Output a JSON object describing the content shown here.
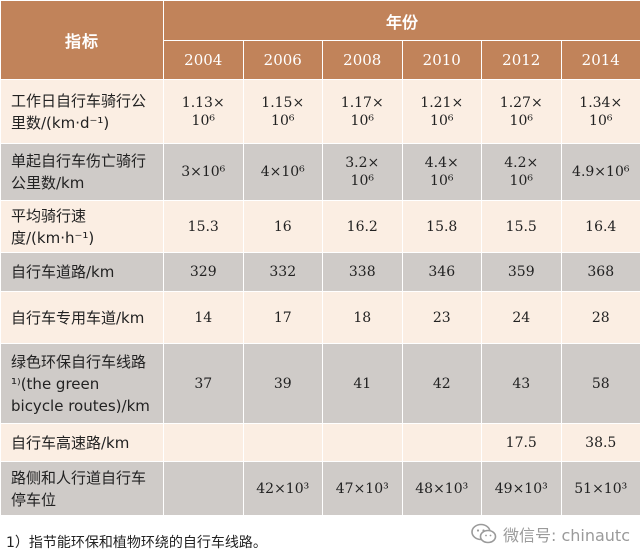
{
  "table": {
    "indicator_header": "指标",
    "year_group_header": "年份",
    "years": [
      "2004",
      "2006",
      "2008",
      "2010",
      "2012",
      "2014"
    ],
    "rows": [
      {
        "label": "工作日自行车骑行公里数/(km·d⁻¹)",
        "cells": [
          "1.13×\n10⁶",
          "1.15×\n10⁶",
          "1.17×\n10⁶",
          "1.21×\n10⁶",
          "1.27×\n10⁶",
          "1.34×\n10⁶"
        ]
      },
      {
        "label": "单起自行车伤亡骑行公里数/km",
        "cells": [
          "3×10⁶",
          "4×10⁶",
          "3.2×\n10⁶",
          "4.4×\n10⁶",
          "4.2×\n10⁶",
          "4.9×10⁶"
        ]
      },
      {
        "label": "平均骑行速度/(km·h⁻¹)",
        "cells": [
          "15.3",
          "16",
          "16.2",
          "15.8",
          "15.5",
          "16.4"
        ]
      },
      {
        "label": "自行车道路/km",
        "cells": [
          "329",
          "332",
          "338",
          "346",
          "359",
          "368"
        ]
      },
      {
        "label": "自行车专用车道/km",
        "cells": [
          "14",
          "17",
          "18",
          "23",
          "24",
          "28"
        ]
      },
      {
        "label": "绿色环保自行车线路¹⁾(the green bicycle routes)/km",
        "cells": [
          "37",
          "39",
          "41",
          "42",
          "43",
          "58"
        ]
      },
      {
        "label": "自行车高速路/km",
        "cells": [
          "",
          "",
          "",
          "",
          "17.5",
          "38.5"
        ]
      },
      {
        "label": "路侧和人行道自行车停车位",
        "cells": [
          "",
          "42×10³",
          "47×10³",
          "48×10³",
          "49×10³",
          "51×10³"
        ]
      }
    ]
  },
  "footnote": "1）指节能环保和植物环绕的自行车线路。",
  "watermark": {
    "text": "微信号: chinautc",
    "icon": "wechat-icon"
  },
  "colors": {
    "header_bg": "#c1835a",
    "row_light": "#fbeee3",
    "row_dark": "#cfcbc8"
  }
}
